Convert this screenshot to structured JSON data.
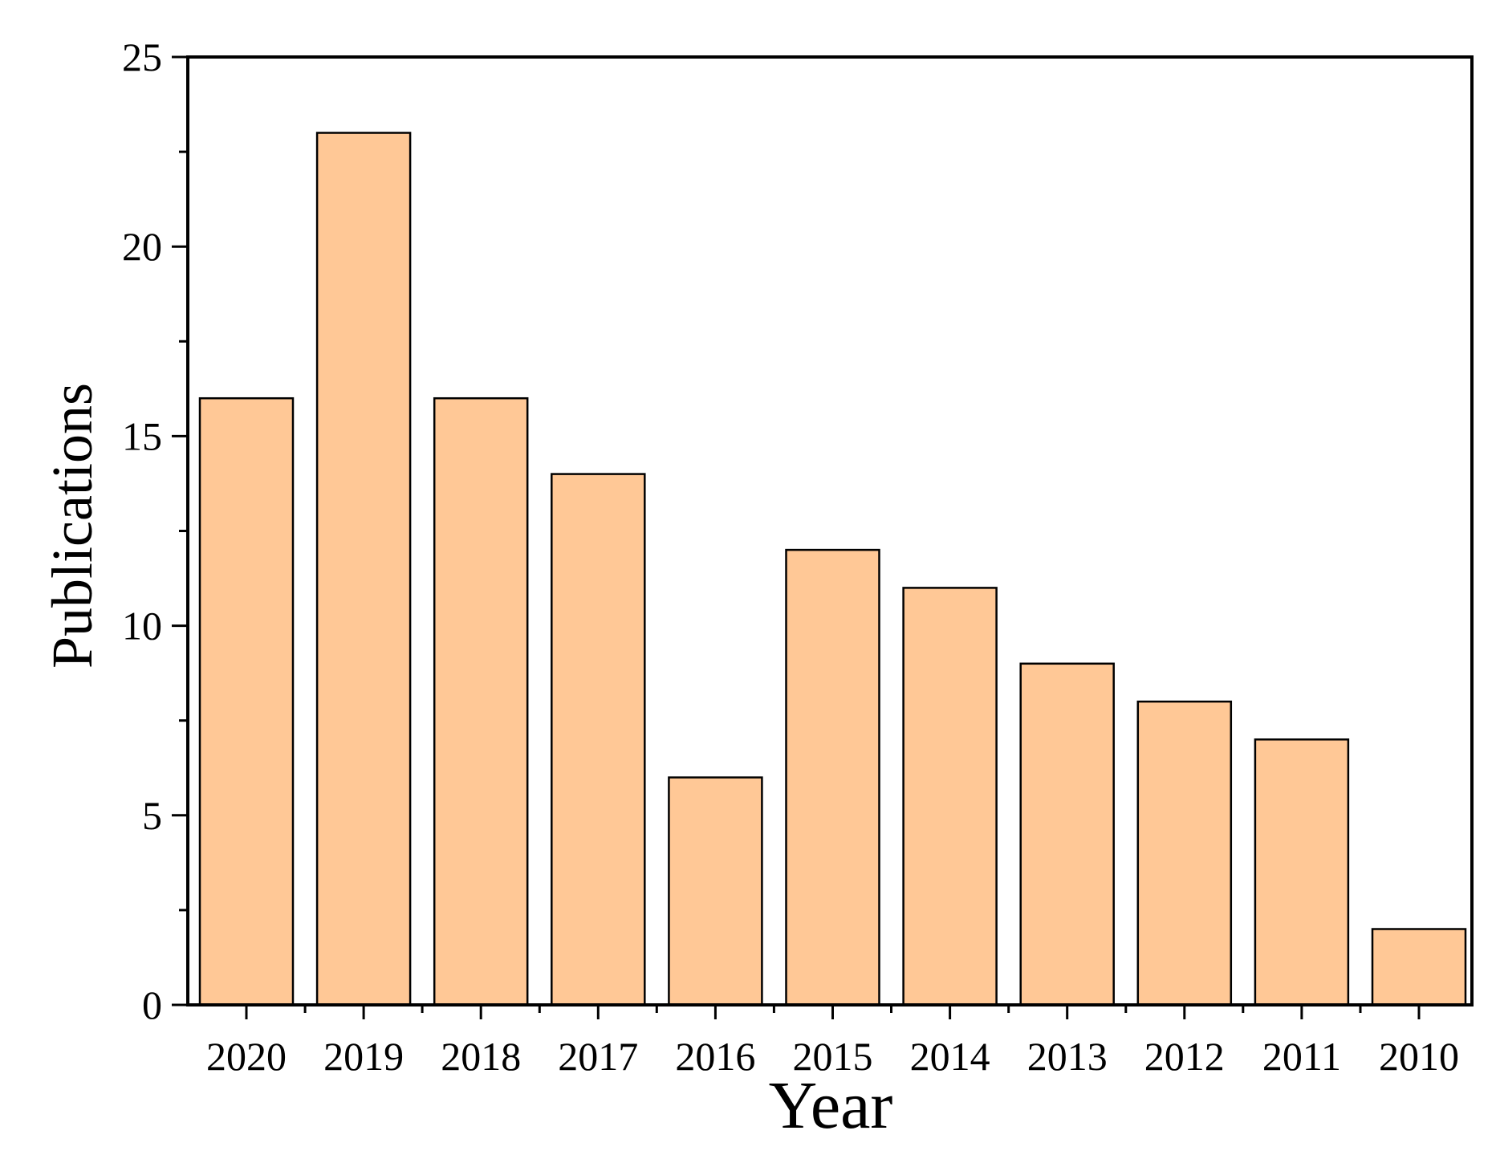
{
  "chart_data": {
    "type": "bar",
    "title": "",
    "xlabel": "Year",
    "ylabel": "Publications",
    "categories": [
      "2020",
      "2019",
      "2018",
      "2017",
      "2016",
      "2015",
      "2014",
      "2013",
      "2012",
      "2011",
      "2010"
    ],
    "values": [
      16,
      23,
      16,
      14,
      6,
      12,
      11,
      9,
      8,
      7,
      2
    ],
    "ylim": [
      0,
      25
    ],
    "yticks": [
      0,
      5,
      10,
      15,
      20,
      25
    ],
    "grid": false,
    "legend": "none",
    "colors": {
      "bar_fill": "#FFC896",
      "bar_stroke": "#000000",
      "axis": "#000000"
    }
  }
}
